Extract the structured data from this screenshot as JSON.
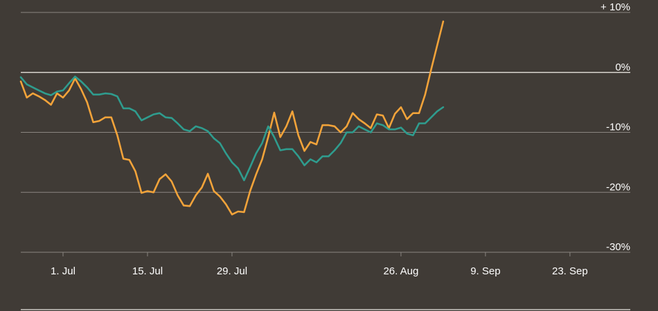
{
  "chart_data": {
    "type": "line",
    "title": "",
    "xlabel": "",
    "ylabel": "",
    "ylim": [
      -30,
      10
    ],
    "yticks": [
      {
        "value": 10,
        "label": "+ 10%"
      },
      {
        "value": 0,
        "label": "0%"
      },
      {
        "value": -10,
        "label": "-10%"
      },
      {
        "value": -20,
        "label": "-20%"
      },
      {
        "value": -30,
        "label": "-30%"
      }
    ],
    "x_start": "2019-06-24",
    "x_end": "2019-10-03",
    "xticks": [
      {
        "date": "2019-07-01",
        "label": "1. Jul"
      },
      {
        "date": "2019-07-15",
        "label": "15. Jul"
      },
      {
        "date": "2019-07-29",
        "label": "29. Jul"
      },
      {
        "date": "2019-08-26",
        "label": "26. Aug"
      },
      {
        "date": "2019-09-09",
        "label": "9. Sep"
      },
      {
        "date": "2019-09-23",
        "label": "23. Sep"
      }
    ],
    "grid": true,
    "legend": "none",
    "series": [
      {
        "color": "#f2a33a",
        "points": [
          [
            "2019-06-24",
            -1.5
          ],
          [
            "2019-06-25",
            -4.2
          ],
          [
            "2019-06-26",
            -3.5
          ],
          [
            "2019-06-27",
            -4.0
          ],
          [
            "2019-06-28",
            -4.6
          ],
          [
            "2019-06-29",
            -5.4
          ],
          [
            "2019-06-30",
            -3.5
          ],
          [
            "2019-07-01",
            -4.2
          ],
          [
            "2019-07-02",
            -3.0
          ],
          [
            "2019-07-03",
            -1.0
          ],
          [
            "2019-07-04",
            -2.8
          ],
          [
            "2019-07-05",
            -5.0
          ],
          [
            "2019-07-06",
            -8.3
          ],
          [
            "2019-07-07",
            -8.1
          ],
          [
            "2019-07-08",
            -7.5
          ],
          [
            "2019-07-09",
            -7.5
          ],
          [
            "2019-07-10",
            -10.5
          ],
          [
            "2019-07-11",
            -14.4
          ],
          [
            "2019-07-12",
            -14.6
          ],
          [
            "2019-07-13",
            -16.5
          ],
          [
            "2019-07-14",
            -20.1
          ],
          [
            "2019-07-15",
            -19.8
          ],
          [
            "2019-07-16",
            -20.0
          ],
          [
            "2019-07-17",
            -17.8
          ],
          [
            "2019-07-18",
            -17.0
          ],
          [
            "2019-07-19",
            -18.2
          ],
          [
            "2019-07-20",
            -20.5
          ],
          [
            "2019-07-21",
            -22.2
          ],
          [
            "2019-07-22",
            -22.3
          ],
          [
            "2019-07-23",
            -20.5
          ],
          [
            "2019-07-24",
            -19.2
          ],
          [
            "2019-07-25",
            -16.9
          ],
          [
            "2019-07-26",
            -19.8
          ],
          [
            "2019-07-27",
            -20.7
          ],
          [
            "2019-07-28",
            -22.0
          ],
          [
            "2019-07-29",
            -23.7
          ],
          [
            "2019-07-30",
            -23.2
          ],
          [
            "2019-07-31",
            -23.3
          ],
          [
            "2019-08-01",
            -19.8
          ],
          [
            "2019-08-02",
            -17.0
          ],
          [
            "2019-08-03",
            -14.5
          ],
          [
            "2019-08-04",
            -10.8
          ],
          [
            "2019-08-05",
            -6.7
          ],
          [
            "2019-08-06",
            -10.8
          ],
          [
            "2019-08-07",
            -9.0
          ],
          [
            "2019-08-08",
            -6.5
          ],
          [
            "2019-08-09",
            -10.5
          ],
          [
            "2019-08-10",
            -13.1
          ],
          [
            "2019-08-11",
            -11.6
          ],
          [
            "2019-08-12",
            -12.0
          ],
          [
            "2019-08-13",
            -8.8
          ],
          [
            "2019-08-14",
            -8.8
          ],
          [
            "2019-08-15",
            -9.0
          ],
          [
            "2019-08-16",
            -10.0
          ],
          [
            "2019-08-17",
            -9.0
          ],
          [
            "2019-08-18",
            -6.8
          ],
          [
            "2019-08-19",
            -7.8
          ],
          [
            "2019-08-20",
            -8.5
          ],
          [
            "2019-08-21",
            -9.3
          ],
          [
            "2019-08-22",
            -7.0
          ],
          [
            "2019-08-23",
            -7.2
          ],
          [
            "2019-08-24",
            -9.3
          ],
          [
            "2019-08-25",
            -6.9
          ],
          [
            "2019-08-26",
            -5.8
          ],
          [
            "2019-08-27",
            -7.8
          ],
          [
            "2019-08-28",
            -6.8
          ],
          [
            "2019-08-29",
            -6.8
          ],
          [
            "2019-08-30",
            -3.7
          ],
          [
            "2019-08-31",
            0.5
          ],
          [
            "2019-09-01",
            4.5
          ],
          [
            "2019-09-02",
            8.5
          ]
        ]
      },
      {
        "color": "#2f9c8e",
        "points": [
          [
            "2019-06-24",
            -0.8
          ],
          [
            "2019-06-25",
            -2.0
          ],
          [
            "2019-06-26",
            -2.5
          ],
          [
            "2019-06-27",
            -3.0
          ],
          [
            "2019-06-28",
            -3.5
          ],
          [
            "2019-06-29",
            -3.8
          ],
          [
            "2019-06-30",
            -3.2
          ],
          [
            "2019-07-01",
            -3.0
          ],
          [
            "2019-07-02",
            -1.8
          ],
          [
            "2019-07-03",
            -0.7
          ],
          [
            "2019-07-04",
            -1.5
          ],
          [
            "2019-07-05",
            -2.5
          ],
          [
            "2019-07-06",
            -3.7
          ],
          [
            "2019-07-07",
            -3.7
          ],
          [
            "2019-07-08",
            -3.5
          ],
          [
            "2019-07-09",
            -3.6
          ],
          [
            "2019-07-10",
            -4.0
          ],
          [
            "2019-07-11",
            -6.0
          ],
          [
            "2019-07-12",
            -6.0
          ],
          [
            "2019-07-13",
            -6.5
          ],
          [
            "2019-07-14",
            -8.0
          ],
          [
            "2019-07-15",
            -7.5
          ],
          [
            "2019-07-16",
            -7.0
          ],
          [
            "2019-07-17",
            -6.8
          ],
          [
            "2019-07-18",
            -7.5
          ],
          [
            "2019-07-19",
            -7.6
          ],
          [
            "2019-07-20",
            -8.5
          ],
          [
            "2019-07-21",
            -9.5
          ],
          [
            "2019-07-22",
            -9.8
          ],
          [
            "2019-07-23",
            -9.0
          ],
          [
            "2019-07-24",
            -9.3
          ],
          [
            "2019-07-25",
            -9.8
          ],
          [
            "2019-07-26",
            -11.0
          ],
          [
            "2019-07-27",
            -11.8
          ],
          [
            "2019-07-28",
            -13.5
          ],
          [
            "2019-07-29",
            -15.0
          ],
          [
            "2019-07-30",
            -16.0
          ],
          [
            "2019-07-31",
            -18.0
          ],
          [
            "2019-08-01",
            -15.8
          ],
          [
            "2019-08-02",
            -13.5
          ],
          [
            "2019-08-03",
            -11.8
          ],
          [
            "2019-08-04",
            -9.0
          ],
          [
            "2019-08-05",
            -10.8
          ],
          [
            "2019-08-06",
            -13.0
          ],
          [
            "2019-08-07",
            -12.8
          ],
          [
            "2019-08-08",
            -12.8
          ],
          [
            "2019-08-09",
            -14.0
          ],
          [
            "2019-08-10",
            -15.5
          ],
          [
            "2019-08-11",
            -14.5
          ],
          [
            "2019-08-12",
            -15.0
          ],
          [
            "2019-08-13",
            -14.0
          ],
          [
            "2019-08-14",
            -14.0
          ],
          [
            "2019-08-15",
            -13.0
          ],
          [
            "2019-08-16",
            -11.8
          ],
          [
            "2019-08-17",
            -10.0
          ],
          [
            "2019-08-18",
            -10.0
          ],
          [
            "2019-08-19",
            -9.0
          ],
          [
            "2019-08-20",
            -9.5
          ],
          [
            "2019-08-21",
            -10.0
          ],
          [
            "2019-08-22",
            -8.5
          ],
          [
            "2019-08-23",
            -8.8
          ],
          [
            "2019-08-24",
            -9.5
          ],
          [
            "2019-08-25",
            -9.5
          ],
          [
            "2019-08-26",
            -9.2
          ],
          [
            "2019-08-27",
            -10.2
          ],
          [
            "2019-08-28",
            -10.5
          ],
          [
            "2019-08-29",
            -8.5
          ],
          [
            "2019-08-30",
            -8.5
          ],
          [
            "2019-08-31",
            -7.5
          ],
          [
            "2019-09-01",
            -6.5
          ],
          [
            "2019-09-02",
            -5.8
          ]
        ]
      }
    ]
  }
}
